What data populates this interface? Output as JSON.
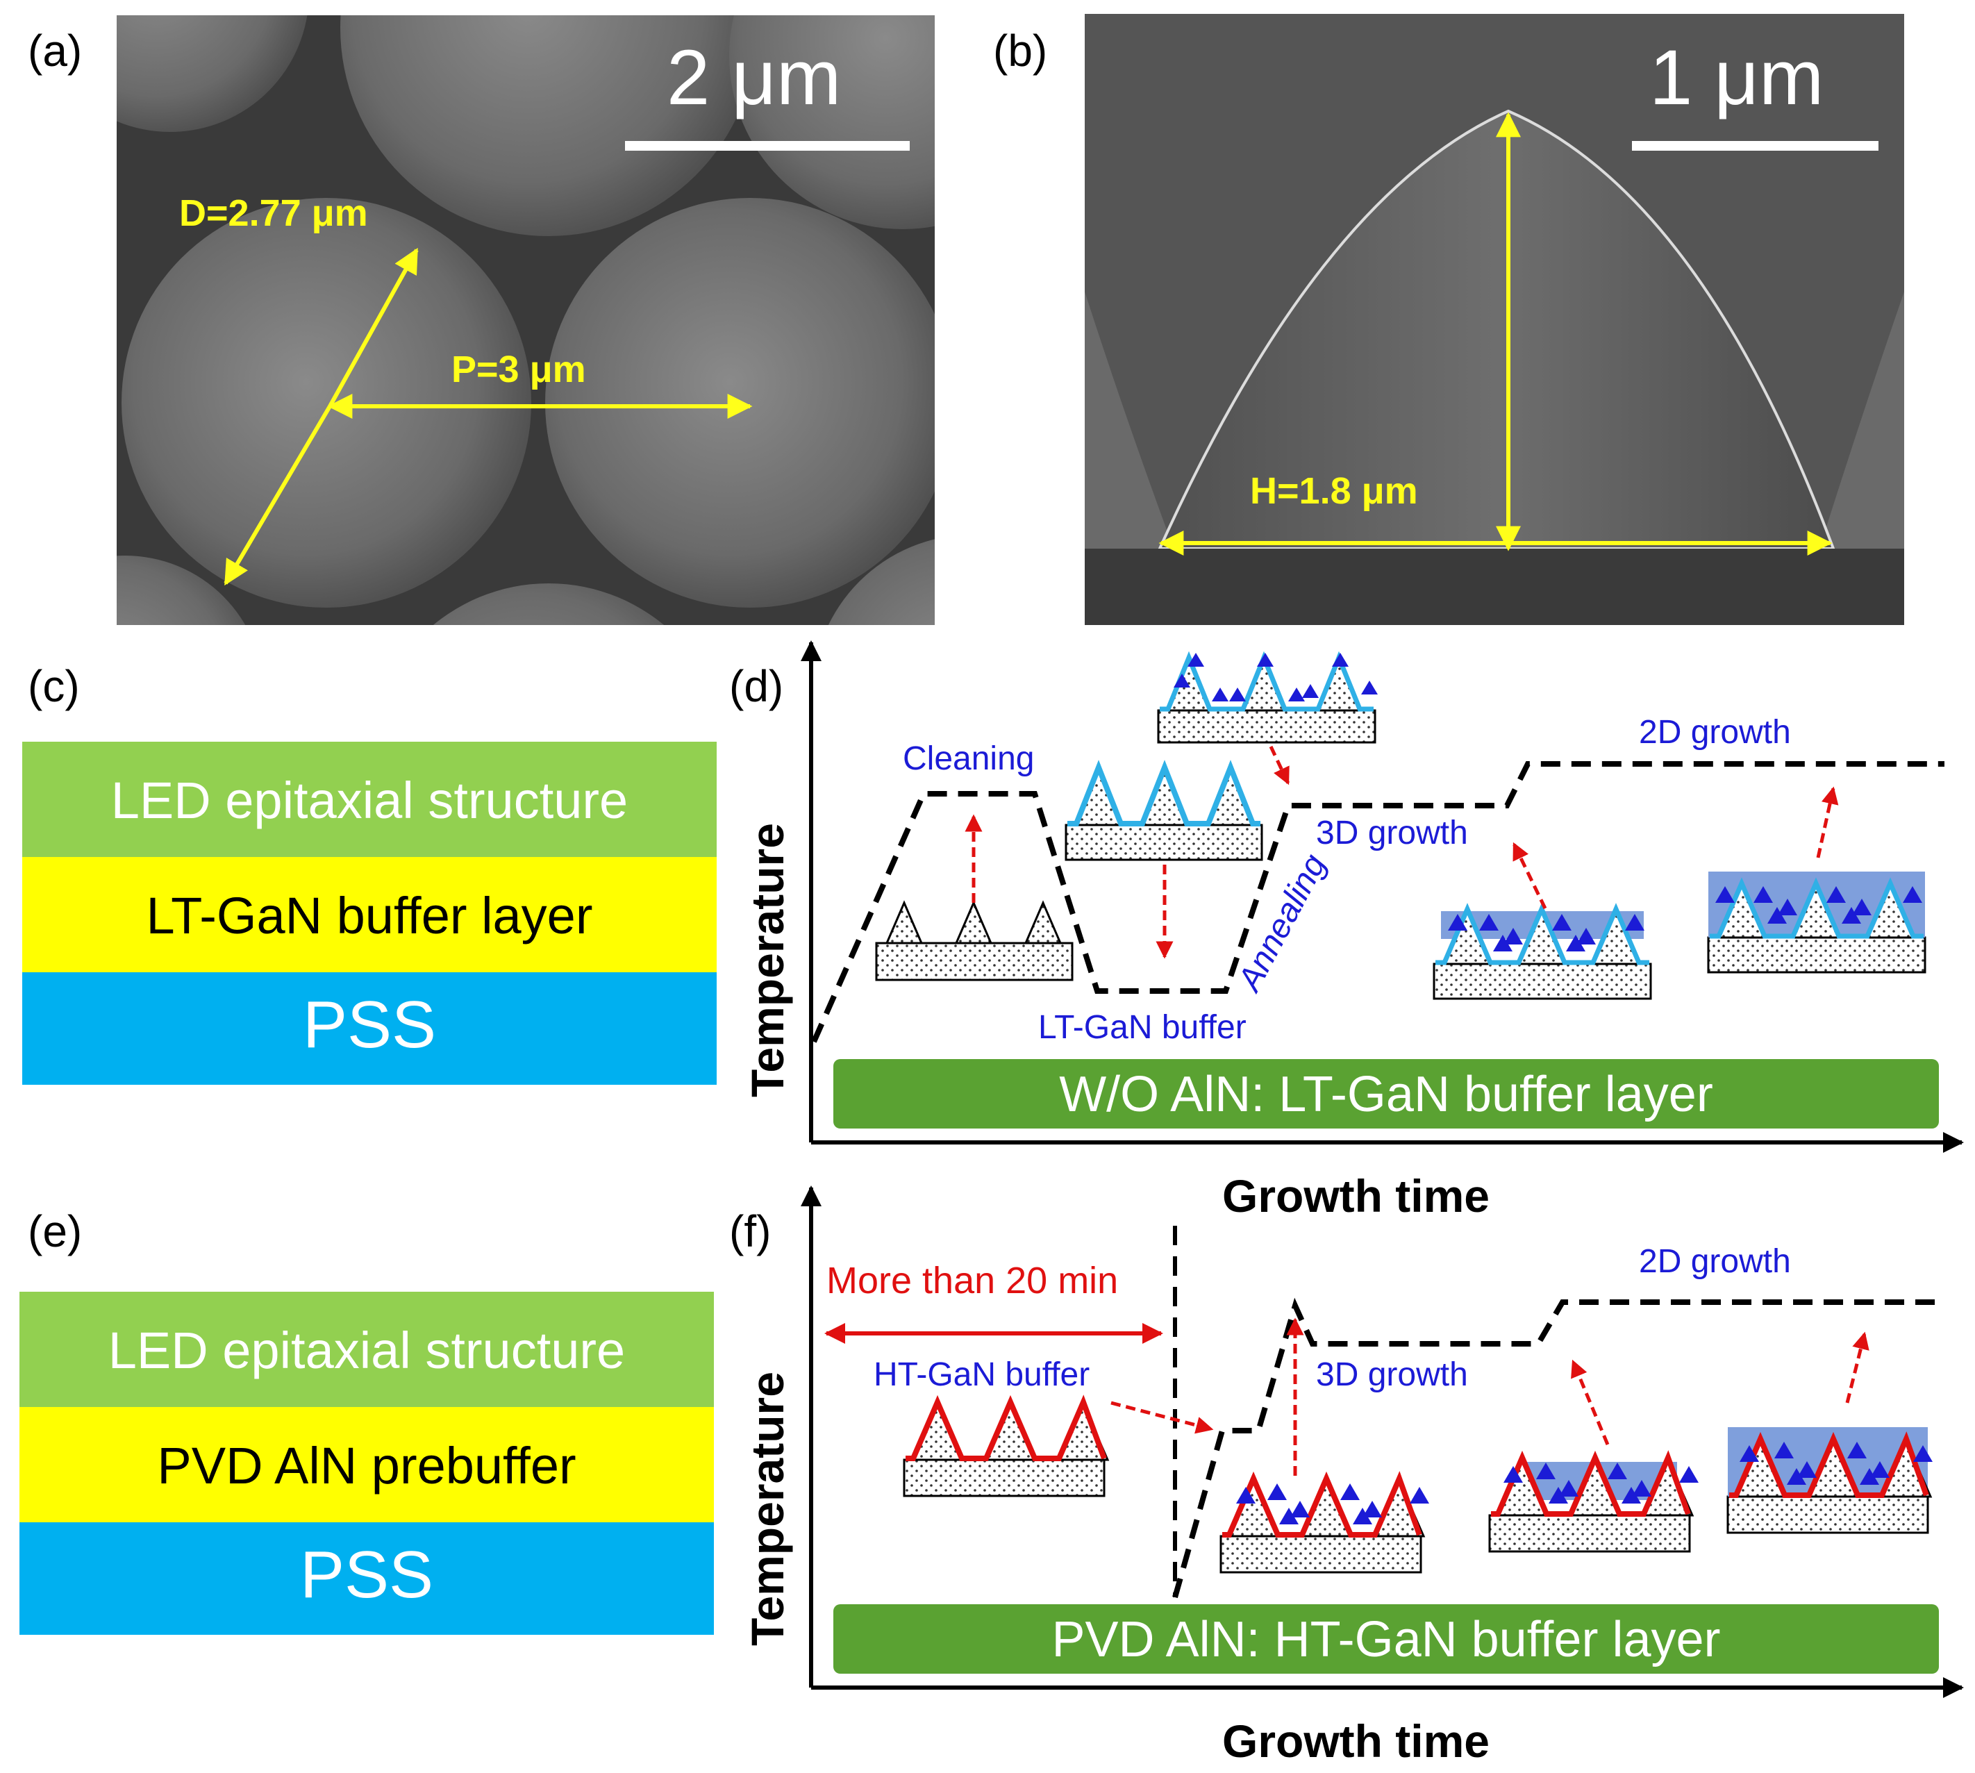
{
  "panels": {
    "a": {
      "label": "(a)",
      "scale_bar": "2 μm",
      "diameter": "D=2.77 μm",
      "pitch": "P=3 μm"
    },
    "b": {
      "label": "(b)",
      "scale_bar": "1 μm",
      "height": "H=1.8 μm"
    },
    "c": {
      "label": "(c)",
      "layers": [
        "LED epitaxial structure",
        "LT-GaN buffer layer",
        "PSS"
      ]
    },
    "d": {
      "label": "(d)",
      "ylabel": "Temperature",
      "xlabel": "Growth time",
      "steps": [
        "Cleaning",
        "LT-GaN buffer",
        "Annealing",
        "3D growth",
        "2D growth"
      ],
      "banner": "W/O AlN: LT-GaN buffer layer"
    },
    "e": {
      "label": "(e)",
      "layers": [
        "LED epitaxial structure",
        "PVD AlN prebuffer",
        "PSS"
      ]
    },
    "f": {
      "label": "(f)",
      "ylabel": "Temperature",
      "xlabel": "Growth time",
      "span_note": "More than 20 min",
      "steps": [
        "HT-GaN buffer",
        "3D growth",
        "2D growth"
      ],
      "banner": "PVD AlN: HT-GaN buffer layer"
    }
  },
  "colors": {
    "green_layer": "#92d050",
    "yellow_layer": "#ffff00",
    "blue_layer": "#00b0f0",
    "banner_green": "#5aa232",
    "step_blue": "#1b1bd6",
    "arrow_red": "#e01010",
    "annotation_yellow": "#ffff1a"
  }
}
